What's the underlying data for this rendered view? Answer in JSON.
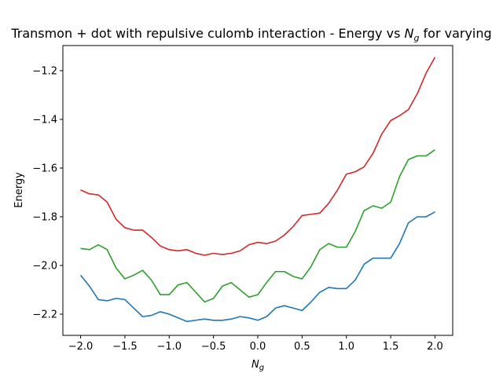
{
  "chart_data": {
    "type": "line",
    "title": [
      "Transmon + dot with repulsive culomb interaction - Energy vs ",
      "N",
      "g",
      " for varying"
    ],
    "x_label": [
      "N",
      "g"
    ],
    "y_label": "Energy",
    "x": [
      -2.0,
      -1.9,
      -1.8,
      -1.7,
      -1.6,
      -1.5,
      -1.4,
      -1.3,
      -1.2,
      -1.1,
      -1.0,
      -0.9,
      -0.8,
      -0.7,
      -0.6,
      -0.5,
      -0.4,
      -0.3,
      -0.2,
      -0.1,
      0.0,
      0.1,
      0.2,
      0.3,
      0.4,
      0.5,
      0.6,
      0.7,
      0.8,
      0.9,
      1.0,
      1.1,
      1.2,
      1.3,
      1.4,
      1.5,
      1.6,
      1.7,
      1.8,
      1.9,
      2.0
    ],
    "series": [
      {
        "color": "#1f77b4",
        "values": [
          -2.04,
          -2.085,
          -2.14,
          -2.145,
          -2.135,
          -2.14,
          -2.175,
          -2.21,
          -2.205,
          -2.19,
          -2.2,
          -2.215,
          -2.23,
          -2.225,
          -2.22,
          -2.225,
          -2.225,
          -2.22,
          -2.21,
          -2.215,
          -2.225,
          -2.21,
          -2.175,
          -2.165,
          -2.175,
          -2.185,
          -2.15,
          -2.11,
          -2.09,
          -2.095,
          -2.095,
          -2.06,
          -1.995,
          -1.97,
          -1.97,
          -1.97,
          -1.91,
          -1.825,
          -1.8,
          -1.8,
          -1.78
        ]
      },
      {
        "color": "#2ca02c",
        "values": [
          -1.93,
          -1.935,
          -1.915,
          -1.935,
          -2.01,
          -2.055,
          -2.04,
          -2.02,
          -2.06,
          -2.12,
          -2.12,
          -2.08,
          -2.07,
          -2.11,
          -2.15,
          -2.135,
          -2.085,
          -2.07,
          -2.1,
          -2.13,
          -2.12,
          -2.07,
          -2.025,
          -2.025,
          -2.045,
          -2.055,
          -2.005,
          -1.935,
          -1.91,
          -1.925,
          -1.925,
          -1.86,
          -1.775,
          -1.755,
          -1.765,
          -1.74,
          -1.635,
          -1.565,
          -1.55,
          -1.55,
          -1.525
        ]
      },
      {
        "color": "#d62728",
        "values": [
          -1.69,
          -1.706,
          -1.71,
          -1.74,
          -1.81,
          -1.845,
          -1.855,
          -1.855,
          -1.885,
          -1.92,
          -1.935,
          -1.94,
          -1.935,
          -1.95,
          -1.958,
          -1.95,
          -1.955,
          -1.95,
          -1.94,
          -1.915,
          -1.905,
          -1.91,
          -1.9,
          -1.875,
          -1.84,
          -1.795,
          -1.79,
          -1.785,
          -1.745,
          -1.69,
          -1.625,
          -1.615,
          -1.595,
          -1.54,
          -1.46,
          -1.405,
          -1.385,
          -1.36,
          -1.295,
          -1.21,
          -1.145
        ]
      }
    ],
    "xlim": [
      -2.2,
      2.2
    ],
    "ylim": [
      -2.287,
      -1.097
    ],
    "xticks": [
      {
        "value": -2.0,
        "label": "−2.0"
      },
      {
        "value": -1.5,
        "label": "−1.5"
      },
      {
        "value": -1.0,
        "label": "−1.0"
      },
      {
        "value": -0.5,
        "label": "−0.5"
      },
      {
        "value": 0.0,
        "label": "0.0"
      },
      0.5,
      {
        "value": 1.0,
        "label": "1.0"
      },
      1.5,
      {
        "value": 2.0,
        "label": "2.0"
      }
    ],
    "yticks": [
      {
        "value": -2.2,
        "label": "−2.2"
      },
      {
        "value": -2.0,
        "label": "−2.0"
      },
      {
        "value": -1.8,
        "label": "−1.8"
      },
      {
        "value": -1.6,
        "label": "−1.6"
      },
      {
        "value": -1.4,
        "label": "−1.4"
      },
      {
        "value": -1.2,
        "label": "−1.2"
      }
    ],
    "grid": false
  }
}
